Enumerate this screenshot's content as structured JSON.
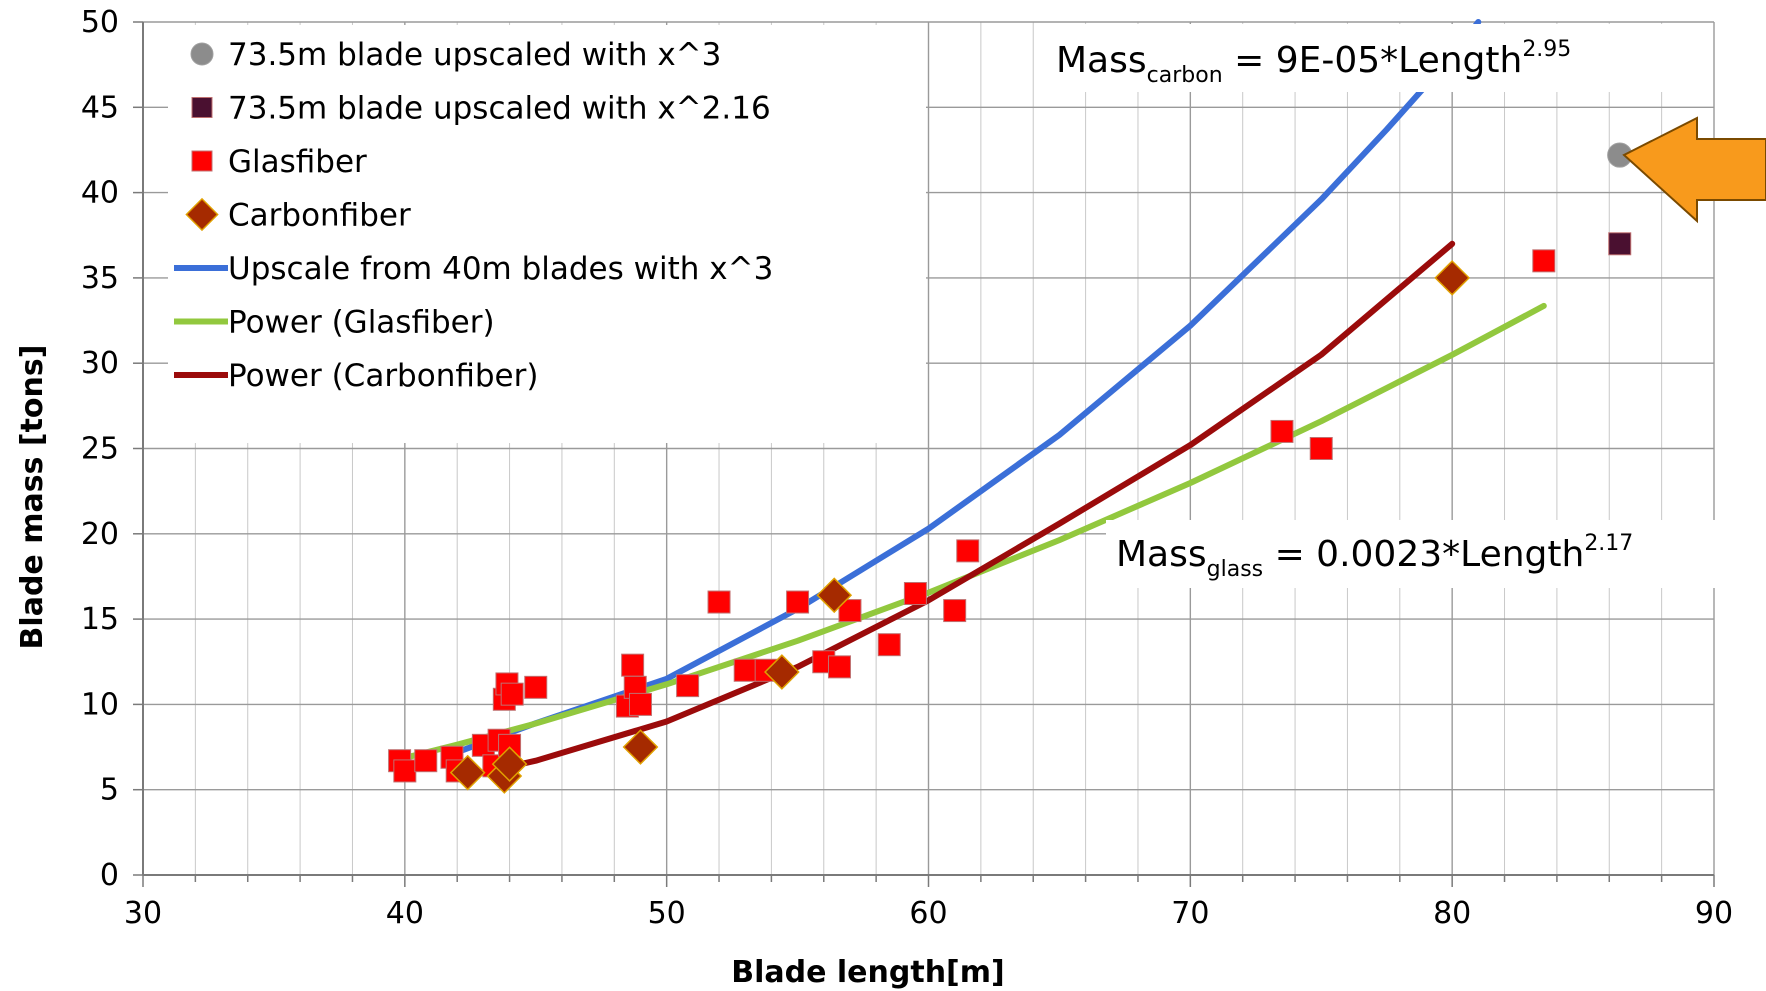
{
  "chart_data": {
    "type": "scatter",
    "xlabel": "Blade length[m]",
    "ylabel": "Blade mass [tons]",
    "xlim": [
      30,
      90
    ],
    "ylim": [
      0,
      50
    ],
    "x_ticks": [
      30,
      40,
      50,
      60,
      70,
      80,
      90
    ],
    "y_ticks": [
      0,
      5,
      10,
      15,
      20,
      25,
      30,
      35,
      40,
      45,
      50
    ],
    "grid": true,
    "legend_placement": "top-left",
    "series": [
      {
        "name": "73.5m blade upscaled with x^3",
        "kind": "points",
        "marker": "circle",
        "color": "#8c8c8c",
        "points": [
          [
            86.4,
            42.2
          ]
        ]
      },
      {
        "name": "73.5m blade upscaled with x^2.16",
        "kind": "points",
        "marker": "square",
        "color": "#4a1030",
        "points": [
          [
            86.4,
            37.0
          ]
        ]
      },
      {
        "name": "Glasfiber",
        "kind": "points",
        "marker": "square",
        "color": "#ff0000",
        "points": [
          [
            39.8,
            6.7
          ],
          [
            40.0,
            6.1
          ],
          [
            40.8,
            6.7
          ],
          [
            41.8,
            6.9
          ],
          [
            42.0,
            6.1
          ],
          [
            43.0,
            7.6
          ],
          [
            43.4,
            6.4
          ],
          [
            43.6,
            7.9
          ],
          [
            43.8,
            10.3
          ],
          [
            43.9,
            11.2
          ],
          [
            44.1,
            10.6
          ],
          [
            44.0,
            7.6
          ],
          [
            45.0,
            11.0
          ],
          [
            48.5,
            9.9
          ],
          [
            48.7,
            12.3
          ],
          [
            48.8,
            11.0
          ],
          [
            49.0,
            10.0
          ],
          [
            50.8,
            11.1
          ],
          [
            52.0,
            16.0
          ],
          [
            53.0,
            12.0
          ],
          [
            53.8,
            12.0
          ],
          [
            55.0,
            16.0
          ],
          [
            56.0,
            12.5
          ],
          [
            56.6,
            12.2
          ],
          [
            57.0,
            15.5
          ],
          [
            58.5,
            13.5
          ],
          [
            59.5,
            16.5
          ],
          [
            61.0,
            15.5
          ],
          [
            61.5,
            19.0
          ],
          [
            73.5,
            26.0
          ],
          [
            75.0,
            25.0
          ],
          [
            83.5,
            36.0
          ]
        ]
      },
      {
        "name": "Carbonfiber",
        "kind": "points",
        "marker": "diamond",
        "color": "#a52a00",
        "points": [
          [
            42.4,
            6.0
          ],
          [
            43.8,
            5.8
          ],
          [
            44.0,
            6.5
          ],
          [
            49.0,
            7.5
          ],
          [
            54.4,
            11.9
          ],
          [
            56.4,
            16.4
          ],
          [
            80.0,
            35.0
          ]
        ]
      },
      {
        "name": "Upscale from 40m blades with x^3",
        "kind": "line",
        "color": "#3b6fd8",
        "points": [
          [
            42.0,
            7.2
          ],
          [
            45.0,
            8.9
          ],
          [
            50.0,
            11.5
          ],
          [
            55.0,
            15.6
          ],
          [
            60.0,
            20.3
          ],
          [
            65.0,
            25.8
          ],
          [
            70.0,
            32.2
          ],
          [
            75.0,
            39.6
          ],
          [
            77.5,
            43.7
          ],
          [
            80.0,
            48.0
          ],
          [
            81.0,
            50.0
          ]
        ]
      },
      {
        "name": "Power (Glasfiber)",
        "kind": "line",
        "color": "#92c83e",
        "points": [
          [
            39.8,
            6.79
          ],
          [
            42.0,
            7.64
          ],
          [
            45.0,
            8.88
          ],
          [
            50.0,
            11.18
          ],
          [
            55.0,
            13.73
          ],
          [
            60.0,
            16.55
          ],
          [
            65.0,
            19.63
          ],
          [
            70.0,
            22.98
          ],
          [
            75.0,
            26.6
          ],
          [
            80.0,
            30.49
          ],
          [
            83.5,
            33.36
          ]
        ]
      },
      {
        "name": "Power (Carbonfiber)",
        "kind": "line",
        "color": "#9b0b0b",
        "points": [
          [
            42.4,
            5.8
          ],
          [
            45.0,
            6.7
          ],
          [
            50.0,
            9.0
          ],
          [
            55.0,
            12.2
          ],
          [
            60.0,
            16.1
          ],
          [
            65.0,
            20.6
          ],
          [
            70.0,
            25.2
          ],
          [
            75.0,
            30.5
          ],
          [
            80.0,
            37.0
          ]
        ]
      }
    ],
    "annotations": [
      {
        "base": "Mass",
        "sub": "carbon",
        "rest": " = 9E-05*Length",
        "sup": "2.95"
      },
      {
        "base": "Mass",
        "sub": "glass",
        "rest": " = 0.0023*Length",
        "sup": "2.17"
      }
    ],
    "arrow": {
      "color": "#f89a1c",
      "points_at": "73.5m blade upscaled with x^3"
    }
  }
}
